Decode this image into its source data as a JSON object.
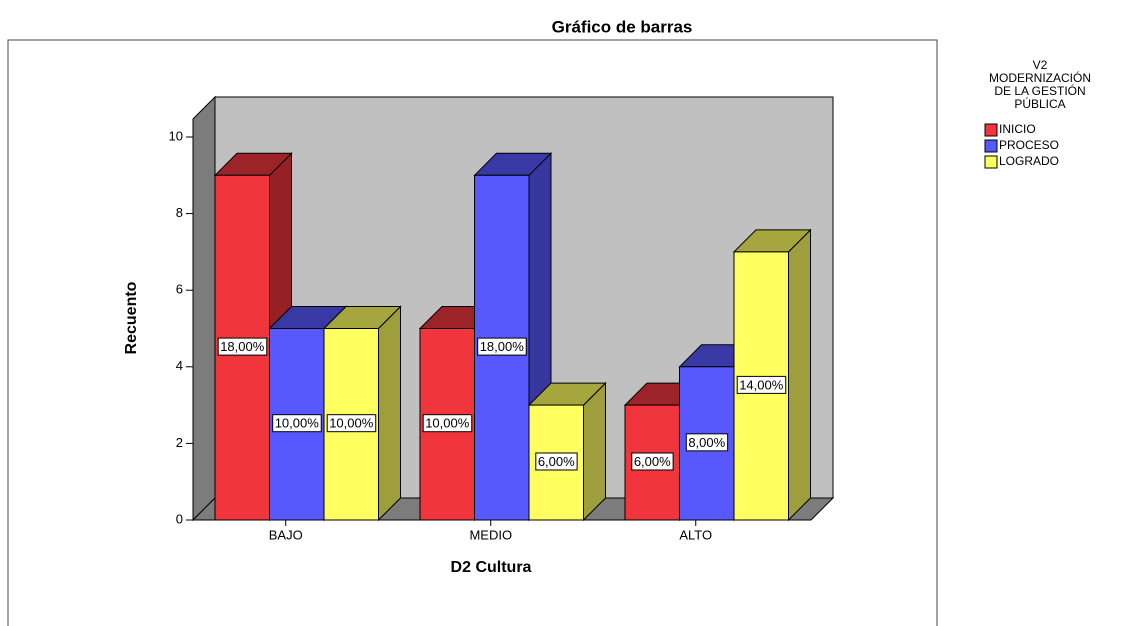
{
  "chart_data": {
    "type": "bar3d",
    "title": "Gráfico de barras",
    "x_label": "D2 Cultura",
    "y_label": "Recuento",
    "legend_title": [
      "V2",
      "MODERNIZACIÓN",
      "DE LA GESTIÓN",
      "PÚBLICA"
    ],
    "categories": [
      "BAJO",
      "MEDIO",
      "ALTO"
    ],
    "series": [
      {
        "name": "INICIO",
        "color": "#f0363c",
        "values": [
          9,
          5,
          3
        ],
        "value_labels": [
          "18,00%",
          "10,00%",
          "6,00%"
        ]
      },
      {
        "name": "PROCESO",
        "color": "#5858ff",
        "values": [
          5,
          9,
          4
        ],
        "value_labels": [
          "10,00%",
          "18,00%",
          "8,00%"
        ]
      },
      {
        "name": "LOGRADO",
        "color": "#ffff60",
        "values": [
          5,
          3,
          7
        ],
        "value_labels": [
          "10,00%",
          "6,00%",
          "14,00%"
        ]
      }
    ],
    "ylim": [
      0,
      10
    ],
    "yticks": [
      0,
      2,
      4,
      6,
      8,
      10
    ]
  }
}
